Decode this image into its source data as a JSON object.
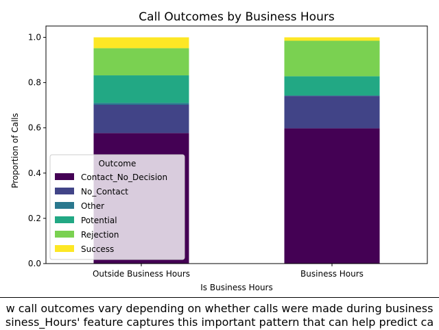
{
  "chart_data": {
    "type": "bar",
    "stacked": true,
    "title": "Call Outcomes by Business Hours",
    "xlabel": "Is Business Hours",
    "ylabel": "Proportion of Calls",
    "ylim": [
      0,
      1.05
    ],
    "yticks": [
      "0.0",
      "0.2",
      "0.4",
      "0.6",
      "0.8",
      "1.0"
    ],
    "categories": [
      "Outside Business Hours",
      "Business Hours"
    ],
    "legend": {
      "title": "Outcome",
      "placement": "lower-left"
    },
    "series": [
      {
        "name": "Contact_No_Decision",
        "color": "#440154",
        "values": [
          0.577,
          0.598
        ]
      },
      {
        "name": "No_Contact",
        "color": "#414487",
        "values": [
          0.125,
          0.143
        ]
      },
      {
        "name": "Other",
        "color": "#2a788e",
        "values": [
          0.008,
          0.002
        ]
      },
      {
        "name": "Potential",
        "color": "#22a884",
        "values": [
          0.122,
          0.085
        ]
      },
      {
        "name": "Rejection",
        "color": "#7ad151",
        "values": [
          0.12,
          0.157
        ]
      },
      {
        "name": "Success",
        "color": "#fde725",
        "values": [
          0.048,
          0.015
        ]
      }
    ]
  },
  "caption": {
    "line1": "w call outcomes vary depending on whether calls were made during business",
    "line2": "siness_Hours' feature captures this important pattern that can help predict ca"
  }
}
